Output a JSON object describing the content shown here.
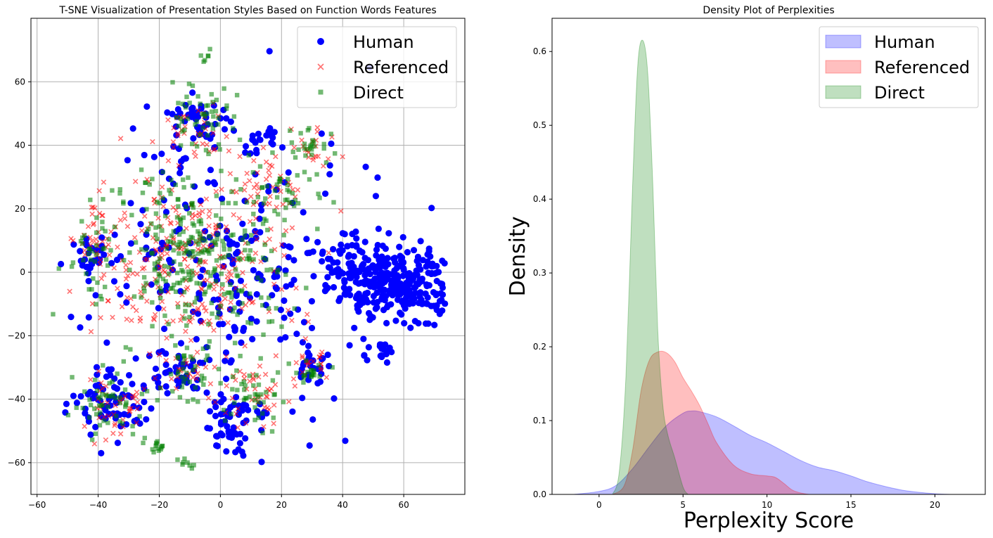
{
  "chart_data": [
    {
      "type": "scatter",
      "title": "T-SNE Visualization of Presentation Styles Based on Function Words Features",
      "xlabel": "",
      "ylabel": "",
      "xlim": [
        -62,
        80
      ],
      "ylim": [
        -70,
        80
      ],
      "xticks": [
        -60,
        -40,
        -20,
        0,
        20,
        40,
        60
      ],
      "yticks": [
        -60,
        -40,
        -20,
        0,
        20,
        40,
        60
      ],
      "xtick_labels": [
        "−60",
        "−40",
        "−20",
        "0",
        "20",
        "40",
        "60"
      ],
      "ytick_labels": [
        "−60",
        "−40",
        "−20",
        "0",
        "20",
        "40",
        "60"
      ],
      "grid": true,
      "legend_position": "top-right",
      "series": [
        {
          "name": "Human",
          "marker": "circle",
          "color": "#0000ff",
          "count": 900,
          "clusters": [
            {
              "cx": 60,
              "cy": -5,
              "sx": 9,
              "sy": 6,
              "w": 0.3
            },
            {
              "cx": 42,
              "cy": 2,
              "sx": 6,
              "sy": 5,
              "w": 0.1
            },
            {
              "cx": -35,
              "cy": -42,
              "sx": 6,
              "sy": 6,
              "w": 0.08
            },
            {
              "cx": 5,
              "cy": -48,
              "sx": 5,
              "sy": 5,
              "w": 0.06
            },
            {
              "cx": -8,
              "cy": 47,
              "sx": 6,
              "sy": 5,
              "w": 0.05
            },
            {
              "cx": 0,
              "cy": 0,
              "sx": 22,
              "sy": 22,
              "w": 0.28
            },
            {
              "cx": -42,
              "cy": 5,
              "sx": 3,
              "sy": 4,
              "w": 0.03
            },
            {
              "cx": 52,
              "cy": -25,
              "sx": 2,
              "sy": 2,
              "w": 0.02
            },
            {
              "cx": -12,
              "cy": -32,
              "sx": 5,
              "sy": 4,
              "w": 0.04
            },
            {
              "cx": 15,
              "cy": 42,
              "sx": 3,
              "sy": 2,
              "w": 0.02
            },
            {
              "cx": 32,
              "cy": -30,
              "sx": 2,
              "sy": 3,
              "w": 0.02
            }
          ]
        },
        {
          "name": "Referenced",
          "marker": "x",
          "color": "#ff0000",
          "count": 520,
          "clusters": [
            {
              "cx": -10,
              "cy": 5,
              "sx": 16,
              "sy": 16,
              "w": 0.55
            },
            {
              "cx": -35,
              "cy": -42,
              "sx": 5,
              "sy": 5,
              "w": 0.08
            },
            {
              "cx": 10,
              "cy": -38,
              "sx": 5,
              "sy": 5,
              "w": 0.07
            },
            {
              "cx": 15,
              "cy": 28,
              "sx": 5,
              "sy": 4,
              "w": 0.07
            },
            {
              "cx": -8,
              "cy": 45,
              "sx": 6,
              "sy": 5,
              "w": 0.06
            },
            {
              "cx": 30,
              "cy": 40,
              "sx": 3,
              "sy": 4,
              "w": 0.04
            },
            {
              "cx": -42,
              "cy": 12,
              "sx": 3,
              "sy": 6,
              "w": 0.05
            },
            {
              "cx": 30,
              "cy": -28,
              "sx": 3,
              "sy": 3,
              "w": 0.04
            },
            {
              "cx": -10,
              "cy": -32,
              "sx": 5,
              "sy": 4,
              "w": 0.04
            }
          ]
        },
        {
          "name": "Direct",
          "marker": "square",
          "color": "#008000",
          "count": 620,
          "clusters": [
            {
              "cx": -8,
              "cy": 5,
              "sx": 16,
              "sy": 16,
              "w": 0.52
            },
            {
              "cx": -35,
              "cy": -42,
              "sx": 5,
              "sy": 5,
              "w": 0.08
            },
            {
              "cx": 10,
              "cy": -38,
              "sx": 5,
              "sy": 5,
              "w": 0.07
            },
            {
              "cx": -8,
              "cy": 50,
              "sx": 6,
              "sy": 5,
              "w": 0.08
            },
            {
              "cx": 30,
              "cy": 40,
              "sx": 3,
              "sy": 3,
              "w": 0.04
            },
            {
              "cx": 22,
              "cy": 25,
              "sx": 5,
              "sy": 4,
              "w": 0.05
            },
            {
              "cx": -42,
              "cy": 8,
              "sx": 3,
              "sy": 5,
              "w": 0.04
            },
            {
              "cx": 30,
              "cy": -32,
              "sx": 2,
              "sy": 2,
              "w": 0.03
            },
            {
              "cx": -12,
              "cy": -33,
              "sx": 4,
              "sy": 4,
              "w": 0.05
            },
            {
              "cx": -5,
              "cy": 68,
              "sx": 2,
              "sy": 1,
              "w": 0.01
            },
            {
              "cx": -10,
              "cy": -61,
              "sx": 1,
              "sy": 1,
              "w": 0.01
            },
            {
              "cx": -20,
              "cy": -55,
              "sx": 1,
              "sy": 1,
              "w": 0.02
            }
          ]
        }
      ]
    },
    {
      "type": "area",
      "title": "Density Plot of Perplexities",
      "xlabel": "Perplexity Score",
      "ylabel": "Density",
      "xlim": [
        -2.8,
        23
      ],
      "ylim": [
        0,
        0.645
      ],
      "xticks": [
        0,
        5,
        10,
        15,
        20
      ],
      "yticks": [
        0.0,
        0.1,
        0.2,
        0.3,
        0.4,
        0.5,
        0.6
      ],
      "xtick_labels": [
        "0",
        "5",
        "10",
        "15",
        "20"
      ],
      "ytick_labels": [
        "0.0",
        "0.1",
        "0.2",
        "0.3",
        "0.4",
        "0.5",
        "0.6"
      ],
      "grid": false,
      "legend_position": "top-right",
      "series": [
        {
          "name": "Human",
          "color": "#0000ff",
          "x": [
            -1.5,
            0,
            1,
            2,
            3,
            4,
            5,
            5.5,
            6,
            7,
            8,
            9,
            10,
            11,
            12,
            13,
            14,
            15,
            16,
            17,
            18,
            19,
            20,
            21
          ],
          "y": [
            0.0,
            0.004,
            0.012,
            0.035,
            0.065,
            0.093,
            0.11,
            0.113,
            0.112,
            0.105,
            0.093,
            0.08,
            0.07,
            0.058,
            0.046,
            0.037,
            0.032,
            0.025,
            0.017,
            0.011,
            0.006,
            0.003,
            0.001,
            0.0
          ]
        },
        {
          "name": "Referenced",
          "color": "#ff0000",
          "x": [
            0.8,
            1.5,
            2,
            2.5,
            3,
            3.5,
            4,
            4.5,
            5,
            5.5,
            6,
            6.5,
            7,
            8,
            9,
            10,
            10.5,
            11,
            11.5,
            12,
            12.5
          ],
          "y": [
            0.0,
            0.012,
            0.06,
            0.14,
            0.182,
            0.193,
            0.192,
            0.18,
            0.158,
            0.14,
            0.12,
            0.095,
            0.07,
            0.04,
            0.028,
            0.025,
            0.023,
            0.015,
            0.006,
            0.002,
            0.0
          ]
        },
        {
          "name": "Direct",
          "color": "#008000",
          "x": [
            0.8,
            1.2,
            1.6,
            2.0,
            2.3,
            2.6,
            2.9,
            3.2,
            3.5,
            3.8,
            4.1,
            4.5,
            5.0,
            5.3
          ],
          "y": [
            0.0,
            0.03,
            0.16,
            0.42,
            0.58,
            0.615,
            0.57,
            0.42,
            0.22,
            0.12,
            0.08,
            0.05,
            0.01,
            0.0
          ]
        }
      ]
    }
  ]
}
